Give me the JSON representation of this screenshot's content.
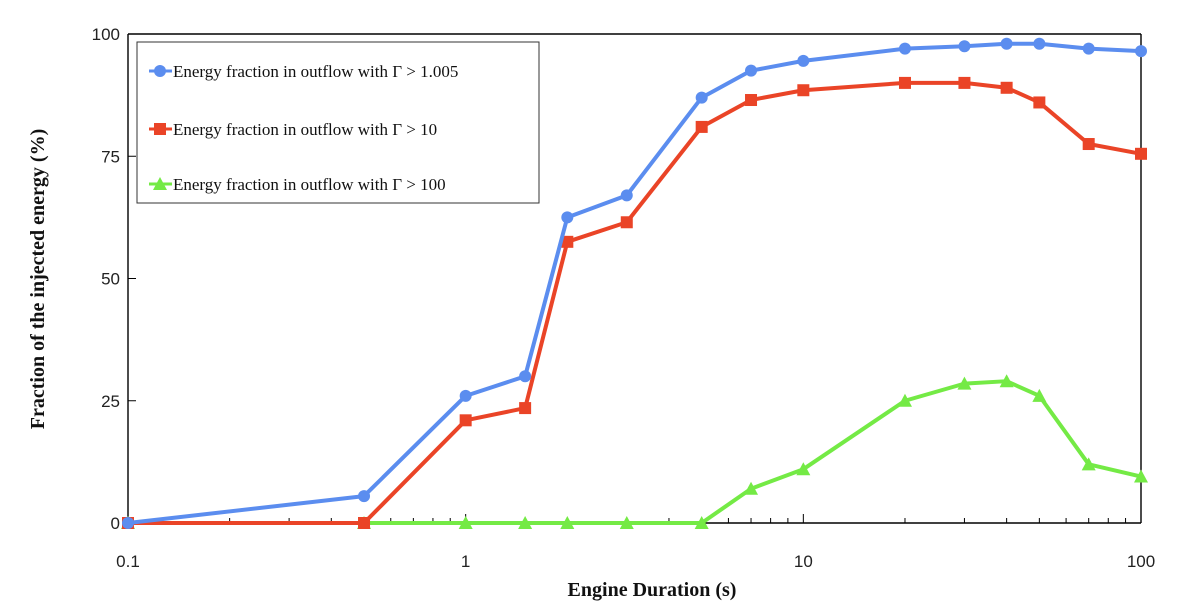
{
  "chart_data": {
    "type": "line",
    "title": "",
    "xlabel": "Engine Duration (s)",
    "ylabel": "Fraction of the injected energy (%)",
    "xscale": "log",
    "xlim": [
      0.1,
      100
    ],
    "ylim": [
      0,
      100
    ],
    "xticks": [
      0.1,
      1,
      10,
      100
    ],
    "xtick_labels": [
      "0.1",
      "1",
      "10",
      "100"
    ],
    "yticks": [
      0,
      25,
      50,
      75,
      100
    ],
    "ytick_labels": [
      "0",
      "25",
      "50",
      "75",
      "100"
    ],
    "grid": false,
    "legend_position": "top-left",
    "series": [
      {
        "name": "Energy fraction in outflow with Γ > 1.005",
        "color": "#5b8def",
        "marker": "circle",
        "x": [
          0.1,
          0.5,
          1,
          1.5,
          2,
          3,
          5,
          7,
          10,
          20,
          30,
          40,
          50,
          70,
          100
        ],
        "y": [
          0,
          5.5,
          26,
          30,
          62.5,
          67,
          87,
          92.5,
          94.5,
          97,
          97.5,
          98,
          98,
          97,
          96.5
        ]
      },
      {
        "name": "Energy fraction in outflow with Γ > 10",
        "color": "#ea4427",
        "marker": "square",
        "x": [
          0.1,
          0.5,
          1,
          1.5,
          2,
          3,
          5,
          7,
          10,
          20,
          30,
          40,
          50,
          70,
          100
        ],
        "y": [
          0,
          0,
          21,
          23.5,
          57.5,
          61.5,
          81,
          86.5,
          88.5,
          90,
          90,
          89,
          86,
          77.5,
          75.5
        ]
      },
      {
        "name": "Energy fraction in outflow with Γ > 100",
        "color": "#74ea45",
        "marker": "triangle",
        "x": [
          0.1,
          0.5,
          1,
          1.5,
          2,
          3,
          5,
          7,
          10,
          20,
          30,
          40,
          50,
          70,
          100
        ],
        "y": [
          0,
          0,
          0,
          0,
          0,
          0,
          0,
          7,
          11,
          25,
          28.5,
          29,
          26,
          12,
          9.5
        ]
      }
    ]
  }
}
